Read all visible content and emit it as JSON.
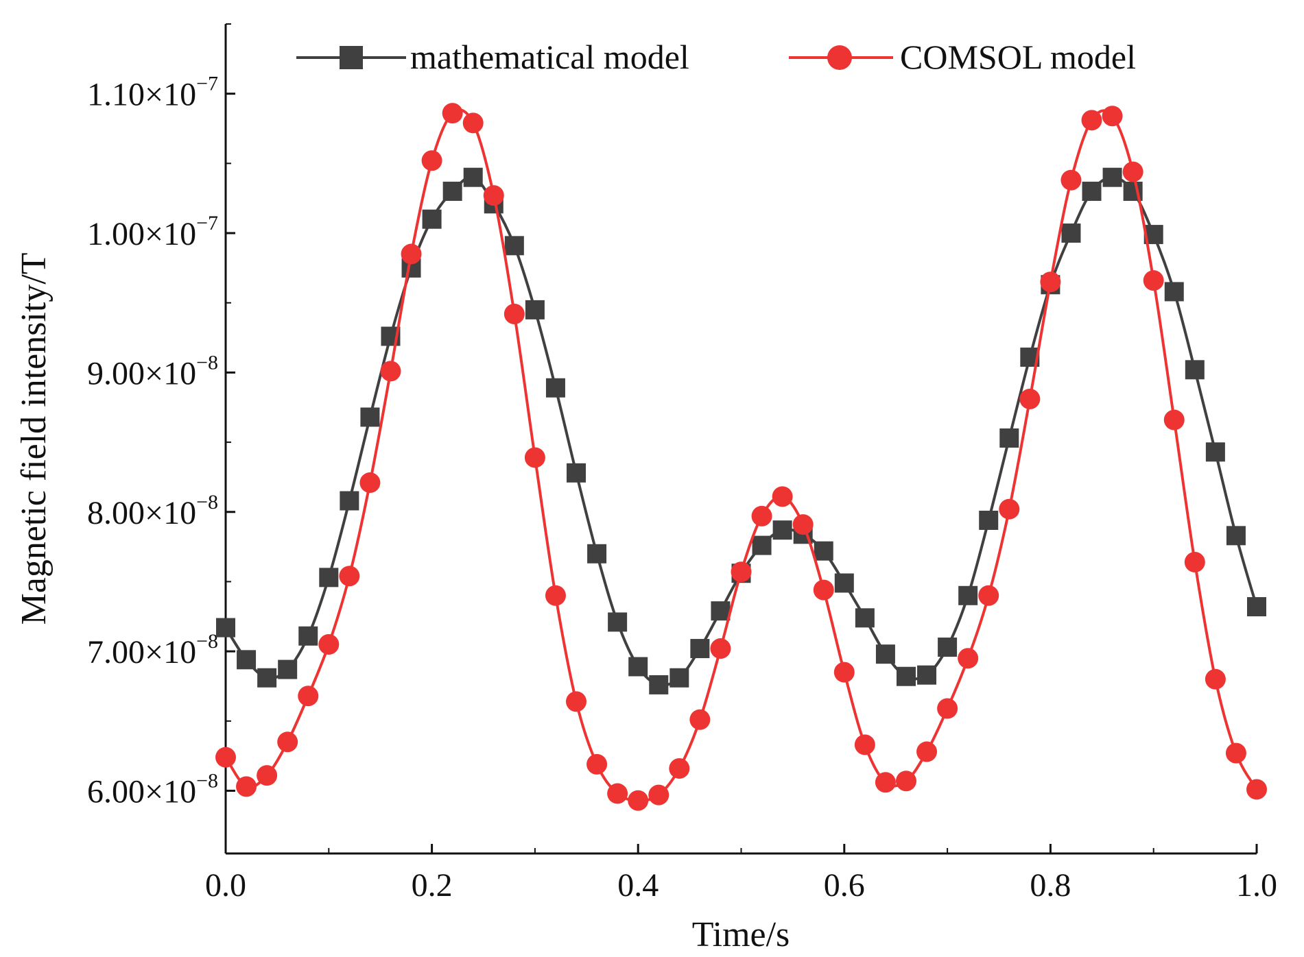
{
  "chart_data": {
    "type": "line",
    "title": "",
    "xlabel": "Time/s",
    "ylabel": "Magnetic field intensity/T",
    "xlim": [
      0.0,
      1.0
    ],
    "ylim": [
      5.55e-08,
      1.15e-07
    ],
    "grid": false,
    "legend_position": "top",
    "x_ticks": [
      {
        "value": 0.0,
        "label": "0.0"
      },
      {
        "value": 0.2,
        "label": "0.2"
      },
      {
        "value": 0.4,
        "label": "0.4"
      },
      {
        "value": 0.6,
        "label": "0.6"
      },
      {
        "value": 0.8,
        "label": "0.8"
      },
      {
        "value": 1.0,
        "label": "1.0"
      }
    ],
    "y_ticks": [
      {
        "value": 6e-08,
        "mantissa": "6.00",
        "times": "×",
        "base": "10",
        "exponent": "−8"
      },
      {
        "value": 7e-08,
        "mantissa": "7.00",
        "times": "×",
        "base": "10",
        "exponent": "−8"
      },
      {
        "value": 8e-08,
        "mantissa": "8.00",
        "times": "×",
        "base": "10",
        "exponent": "−8"
      },
      {
        "value": 9e-08,
        "mantissa": "9.00",
        "times": "×",
        "base": "10",
        "exponent": "−8"
      },
      {
        "value": 1e-07,
        "mantissa": "1.00",
        "times": "×",
        "base": "10",
        "exponent": "−7"
      },
      {
        "value": 1.1e-07,
        "mantissa": "1.10",
        "times": "×",
        "base": "10",
        "exponent": "−7"
      }
    ],
    "x": [
      0.0,
      0.02,
      0.04,
      0.06,
      0.08,
      0.1,
      0.12,
      0.14,
      0.16,
      0.18,
      0.2,
      0.22,
      0.24,
      0.26,
      0.28,
      0.3,
      0.32,
      0.34,
      0.36,
      0.38,
      0.4,
      0.42,
      0.44,
      0.46,
      0.48,
      0.5,
      0.52,
      0.54,
      0.56,
      0.58,
      0.6,
      0.62,
      0.64,
      0.66,
      0.68,
      0.7,
      0.72,
      0.74,
      0.76,
      0.78,
      0.8,
      0.82,
      0.84,
      0.86,
      0.88,
      0.9,
      0.92,
      0.94,
      0.96,
      0.98,
      1.0
    ],
    "series": [
      {
        "name": "mathematical model",
        "color": "#404040",
        "marker": "square",
        "values": [
          7.17e-08,
          6.94e-08,
          6.81e-08,
          6.87e-08,
          7.11e-08,
          7.53e-08,
          8.08e-08,
          8.68e-08,
          9.26e-08,
          9.75e-08,
          1.01e-07,
          1.03e-07,
          1.04e-07,
          1.021e-07,
          9.91e-08,
          9.45e-08,
          8.89e-08,
          8.28e-08,
          7.7e-08,
          7.21e-08,
          6.89e-08,
          6.76e-08,
          6.81e-08,
          7.02e-08,
          7.29e-08,
          7.56e-08,
          7.76e-08,
          7.87e-08,
          7.84e-08,
          7.72e-08,
          7.49e-08,
          7.24e-08,
          6.98e-08,
          6.82e-08,
          6.83e-08,
          7.03e-08,
          7.4e-08,
          7.94e-08,
          8.53e-08,
          9.11e-08,
          9.63e-08,
          1e-07,
          1.03e-07,
          1.04e-07,
          1.03e-07,
          9.99e-08,
          9.58e-08,
          9.02e-08,
          8.43e-08,
          7.83e-08,
          7.32e-08
        ]
      },
      {
        "name": "COMSOL model",
        "color": "#ee3333",
        "marker": "circle",
        "values": [
          6.24e-08,
          6.03e-08,
          6.11e-08,
          6.35e-08,
          6.68e-08,
          7.05e-08,
          7.54e-08,
          8.21e-08,
          9.01e-08,
          9.85e-08,
          1.052e-07,
          1.086e-07,
          1.079e-07,
          1.027e-07,
          9.42e-08,
          8.39e-08,
          7.4e-08,
          6.64e-08,
          6.19e-08,
          5.98e-08,
          5.93e-08,
          5.97e-08,
          6.16e-08,
          6.51e-08,
          7.02e-08,
          7.57e-08,
          7.97e-08,
          8.11e-08,
          7.91e-08,
          7.44e-08,
          6.85e-08,
          6.33e-08,
          6.06e-08,
          6.07e-08,
          6.28e-08,
          6.59e-08,
          6.95e-08,
          7.4e-08,
          8.02e-08,
          8.81e-08,
          9.65e-08,
          1.038e-07,
          1.081e-07,
          1.084e-07,
          1.044e-07,
          9.66e-08,
          8.66e-08,
          7.64e-08,
          6.8e-08,
          6.27e-08,
          6.01e-08
        ]
      }
    ]
  }
}
